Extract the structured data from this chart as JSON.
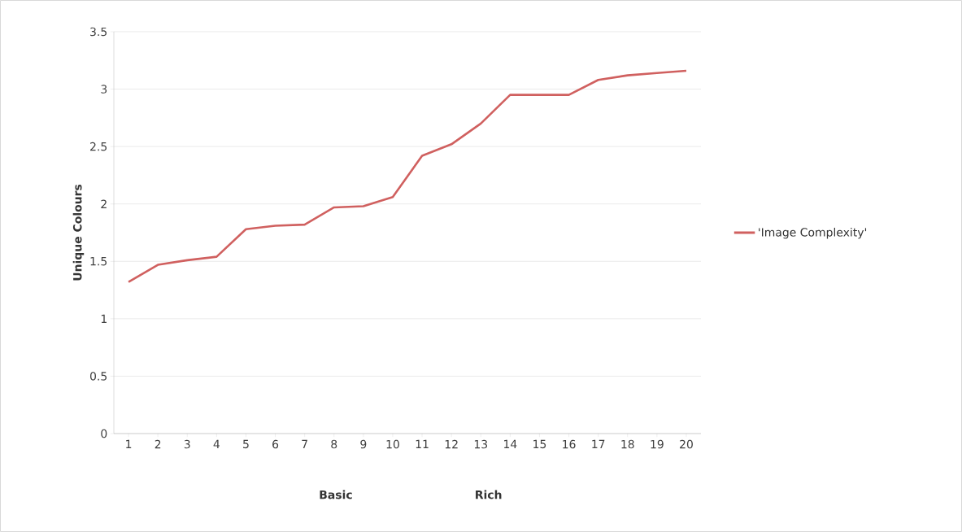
{
  "chart_data": {
    "type": "line",
    "ylabel": "Unique Colours",
    "annotations": [
      "Basic",
      "Rich"
    ],
    "categories": [
      "1",
      "2",
      "3",
      "4",
      "5",
      "6",
      "7",
      "8",
      "9",
      "10",
      "11",
      "12",
      "13",
      "14",
      "15",
      "16",
      "17",
      "18",
      "19",
      "20"
    ],
    "series": [
      {
        "name": "'Image Complexity'",
        "color": "#d0605f",
        "values": [
          1.32,
          1.47,
          1.51,
          1.54,
          1.78,
          1.81,
          1.82,
          1.97,
          1.98,
          2.06,
          2.42,
          2.52,
          2.7,
          2.95,
          2.95,
          2.95,
          3.08,
          3.12,
          3.14,
          3.16
        ]
      }
    ],
    "ylim": [
      0,
      3.5
    ],
    "yticks": [
      0,
      0.5,
      1,
      1.5,
      2,
      2.5,
      3,
      3.5
    ],
    "grid": "y",
    "legend": "right",
    "marker": "none",
    "line_style": "solid"
  }
}
